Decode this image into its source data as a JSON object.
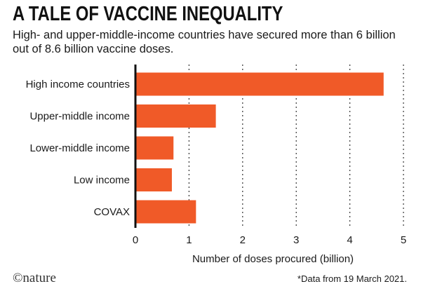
{
  "header": {
    "title": "A TALE OF VACCINE INEQUALITY",
    "subtitle": "High- and upper-middle-income countries have secured more than 6 billion out of 8.6 billion vaccine doses."
  },
  "chart_data": {
    "type": "bar",
    "orientation": "horizontal",
    "title": "A TALE OF VACCINE INEQUALITY",
    "categories": [
      "High income countries",
      "Upper-middle income",
      "Lower-middle income",
      "Low income",
      "COVAX"
    ],
    "values": [
      4.63,
      1.5,
      0.71,
      0.68,
      1.13
    ],
    "xlabel": "Number of doses procured (billion)",
    "ylabel": "",
    "xlim": [
      0,
      5
    ],
    "xticks": [
      0,
      1,
      2,
      3,
      4,
      5
    ],
    "bar_color": "#f05a28",
    "grid": "dotted vertical"
  },
  "footer": {
    "brand": "©nature",
    "note": "*Data from 19 March 2021."
  }
}
